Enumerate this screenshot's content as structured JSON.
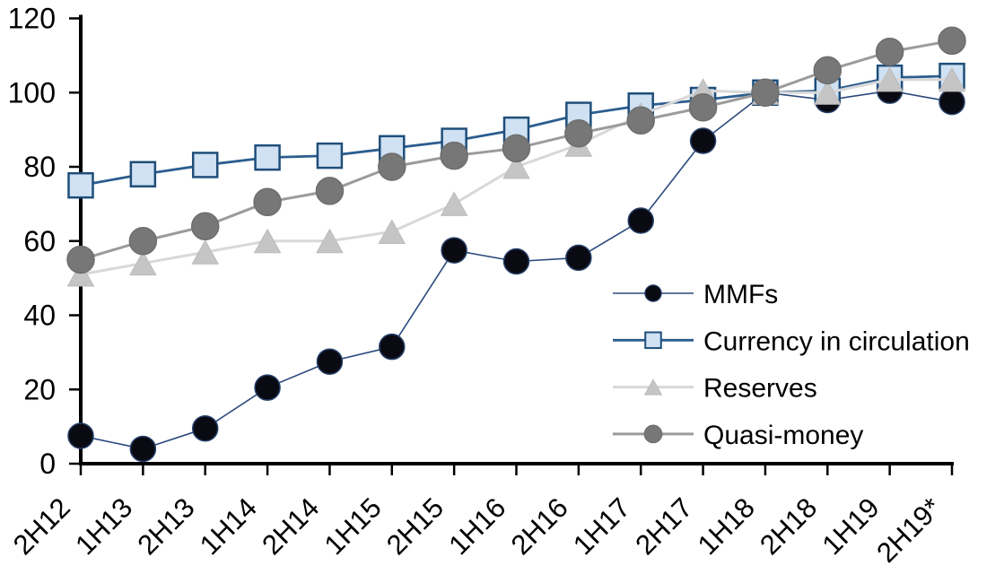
{
  "chart_data": {
    "type": "line",
    "title": "",
    "xlabel": "",
    "ylabel": "",
    "grid": false,
    "legend_position": "inside-right",
    "ylim": [
      0,
      120
    ],
    "ytick_step": 20,
    "ytick_labels": [
      "0",
      "20",
      "40",
      "60",
      "80",
      "100",
      "120"
    ],
    "categories": [
      "2H12",
      "1H13",
      "2H13",
      "1H14",
      "2H14",
      "1H15",
      "2H15",
      "1H16",
      "2H16",
      "1H17",
      "2H17",
      "1H18",
      "2H18",
      "1H19",
      "2H19*"
    ],
    "series": [
      {
        "name": "MMFs",
        "marker": "circle",
        "line_color": "#2b4a7d",
        "marker_fill": "#0a0a12",
        "marker_stroke": "#27406b",
        "values": [
          7.5,
          4,
          9.5,
          20.5,
          27.5,
          31.5,
          57.5,
          54.5,
          55.5,
          65.5,
          87,
          100,
          98,
          100.5,
          97.5
        ]
      },
      {
        "name": "Currency in circulation",
        "marker": "square",
        "line_color": "#2c5d8f",
        "marker_fill": "#cfe1f3",
        "marker_stroke": "#1f4e79",
        "values": [
          75,
          78,
          80.5,
          82.5,
          83,
          85,
          87,
          90,
          94,
          96.5,
          98,
          100,
          100.5,
          104,
          104.5
        ]
      },
      {
        "name": "Reserves",
        "marker": "triangle",
        "line_color": "#d8d8d8",
        "marker_fill": "#c5c5c5",
        "marker_stroke": "#bcbcbc",
        "values": [
          51,
          54,
          57,
          60,
          60,
          62.5,
          70,
          80,
          86,
          94,
          100.5,
          100,
          100,
          103.5,
          103.5
        ]
      },
      {
        "name": "Quasi-money",
        "marker": "circle",
        "line_color": "#9b9b9b",
        "marker_fill": "#777777",
        "marker_stroke": "#6e6e6e",
        "values": [
          55,
          60,
          64,
          70.5,
          73.5,
          80,
          83,
          85,
          89,
          92.5,
          96,
          100,
          106,
          111,
          114
        ]
      }
    ],
    "axis_color": "#000000"
  }
}
